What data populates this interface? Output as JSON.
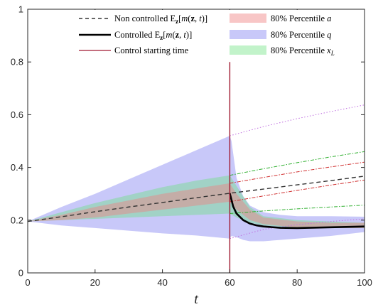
{
  "chart_data": {
    "type": "line",
    "title": "",
    "xlabel": "t",
    "ylabel": "",
    "xlim": [
      0,
      100
    ],
    "ylim": [
      0,
      1
    ],
    "xticks": [
      0,
      20,
      40,
      60,
      80,
      100
    ],
    "yticks": [
      0,
      0.2,
      0.4,
      0.6,
      0.8,
      1
    ],
    "grid": false,
    "legend_placement": "top",
    "legend_left": [
      "Non controlled Eₓ[m(z, t)]",
      "Controlled Eₓ[m(z, t)]",
      "Control starting time"
    ],
    "legend_right": [
      "80% Percentile a",
      "80% Percentile q",
      "80% Percentile x_L"
    ],
    "control_start": 60,
    "series": [
      {
        "name": "Non controlled E_z[m(z,t)]",
        "style": "dashed",
        "color": "#333333",
        "x": [
          0,
          10,
          20,
          30,
          40,
          50,
          60,
          70,
          80,
          90,
          100
        ],
        "y": [
          0.195,
          0.213,
          0.232,
          0.25,
          0.267,
          0.285,
          0.302,
          0.318,
          0.334,
          0.35,
          0.367
        ]
      },
      {
        "name": "Controlled E_z[m(z,t)]",
        "style": "solid",
        "color": "#000000",
        "x": [
          60,
          61,
          62,
          64,
          66,
          68,
          70,
          75,
          80,
          90,
          100
        ],
        "y": [
          0.302,
          0.252,
          0.225,
          0.2,
          0.187,
          0.18,
          0.176,
          0.171,
          0.17,
          0.173,
          0.176
        ]
      }
    ],
    "bands": [
      {
        "name": "80% Percentile q",
        "color": "#7b7bf0",
        "opacity": 0.42,
        "x": [
          0,
          10,
          20,
          30,
          40,
          50,
          60,
          60.5,
          62,
          64,
          66,
          70,
          75,
          80,
          90,
          100
        ],
        "lower": [
          0.195,
          0.18,
          0.17,
          0.16,
          0.15,
          0.142,
          0.13,
          0.14,
          0.135,
          0.125,
          0.12,
          0.12,
          0.125,
          0.13,
          0.14,
          0.155
        ],
        "upper": [
          0.195,
          0.25,
          0.3,
          0.355,
          0.41,
          0.465,
          0.52,
          0.5,
          0.36,
          0.29,
          0.255,
          0.23,
          0.22,
          0.215,
          0.215,
          0.213
        ]
      },
      {
        "name": "80% Percentile x_L",
        "color": "#66e07a",
        "opacity": 0.4,
        "x": [
          0,
          10,
          20,
          30,
          40,
          50,
          60,
          62,
          66,
          70,
          80,
          90,
          100
        ],
        "lower": [
          0.195,
          0.2,
          0.205,
          0.21,
          0.215,
          0.22,
          0.225,
          0.21,
          0.19,
          0.18,
          0.17,
          0.17,
          0.17
        ],
        "upper": [
          0.195,
          0.23,
          0.265,
          0.295,
          0.325,
          0.35,
          0.37,
          0.33,
          0.25,
          0.215,
          0.2,
          0.195,
          0.19
        ]
      },
      {
        "name": "80% Percentile a",
        "color": "#f08080",
        "opacity": 0.45,
        "x": [
          0,
          10,
          20,
          30,
          40,
          50,
          60,
          62,
          66,
          70,
          80,
          90,
          100
        ],
        "lower": [
          0.195,
          0.2,
          0.21,
          0.225,
          0.24,
          0.255,
          0.27,
          0.24,
          0.2,
          0.185,
          0.172,
          0.17,
          0.17
        ],
        "upper": [
          0.195,
          0.22,
          0.25,
          0.275,
          0.3,
          0.32,
          0.34,
          0.3,
          0.24,
          0.21,
          0.195,
          0.19,
          0.19
        ]
      }
    ],
    "dotted_extensions": [
      {
        "color": "#c070e0",
        "style": "dotted",
        "x": [
          60,
          70,
          80,
          90,
          100
        ],
        "y": [
          0.52,
          0.555,
          0.585,
          0.612,
          0.637
        ]
      },
      {
        "color": "#d03030",
        "style": "dashdot",
        "x": [
          60,
          70,
          80,
          90,
          100
        ],
        "y": [
          0.34,
          0.362,
          0.383,
          0.402,
          0.42
        ]
      },
      {
        "color": "#30b030",
        "style": "dashdot",
        "x": [
          60,
          70,
          80,
          90,
          100
        ],
        "y": [
          0.37,
          0.395,
          0.418,
          0.44,
          0.46
        ]
      },
      {
        "color": "#d03030",
        "style": "dashdot",
        "x": [
          60,
          70,
          80,
          90,
          100
        ],
        "y": [
          0.27,
          0.292,
          0.313,
          0.333,
          0.352
        ]
      },
      {
        "color": "#30b030",
        "style": "dashdot",
        "x": [
          60,
          70,
          80,
          90,
          100
        ],
        "y": [
          0.225,
          0.235,
          0.243,
          0.25,
          0.257
        ]
      },
      {
        "color": "#c070e0",
        "style": "dotted",
        "x": [
          60,
          70,
          80,
          90,
          100
        ],
        "y": [
          0.13,
          0.165,
          0.183,
          0.195,
          0.205
        ]
      }
    ],
    "colors": {
      "control_line": "#a01830",
      "axis": "#262626"
    }
  }
}
